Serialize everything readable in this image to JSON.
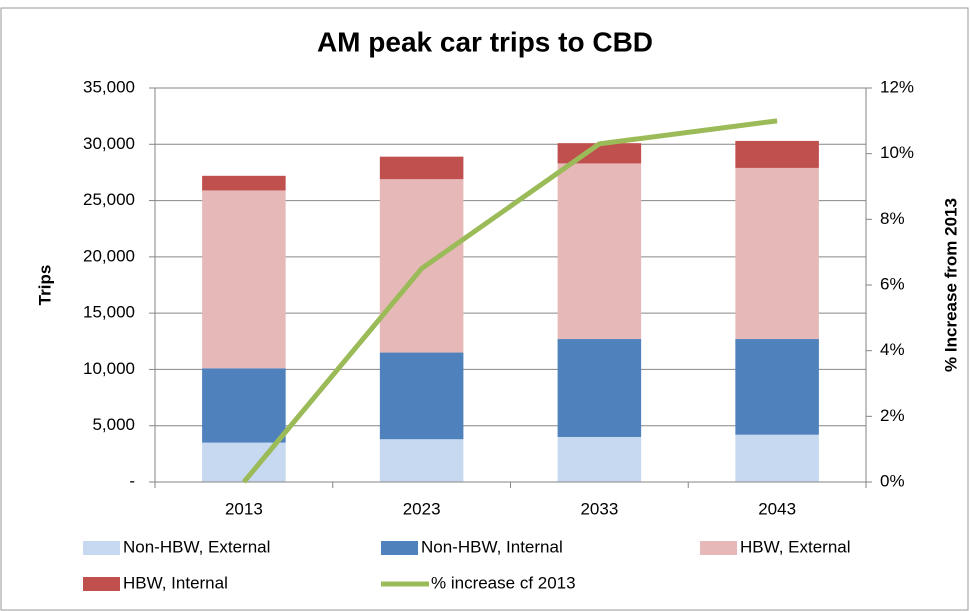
{
  "chart_data": {
    "type": "bar",
    "stacked": true,
    "title": "AM peak car trips to CBD",
    "y_label": "Trips",
    "y2_label": "% Increase from 2013",
    "categories": [
      "2013",
      "2023",
      "2033",
      "2043"
    ],
    "series": [
      {
        "name": "Non-HBW, External",
        "color": "#c6d9f1",
        "values": [
          3500,
          3800,
          4000,
          4200
        ]
      },
      {
        "name": "Non-HBW, Internal",
        "color": "#4f81bd",
        "values": [
          6600,
          7700,
          8700,
          8500
        ]
      },
      {
        "name": "HBW, External",
        "color": "#e6b9b8",
        "values": [
          15800,
          15400,
          15600,
          15200
        ]
      },
      {
        "name": "HBW, Internal",
        "color": "#c0504d",
        "values": [
          1300,
          2000,
          1800,
          2400
        ]
      },
      {
        "name": "% increase cf 2013",
        "type": "line",
        "axis": "y2",
        "color": "#9bbb59",
        "values": [
          0,
          6.5,
          10.3,
          11.0
        ]
      }
    ],
    "ylim": [
      0,
      35000
    ],
    "yticks": [
      {
        "value": 0,
        "label": "-"
      },
      {
        "value": 5000,
        "label": "5,000"
      },
      {
        "value": 10000,
        "label": "10,000"
      },
      {
        "value": 15000,
        "label": "15,000"
      },
      {
        "value": 20000,
        "label": "20,000"
      },
      {
        "value": 25000,
        "label": "25,000"
      },
      {
        "value": 30000,
        "label": "30,000"
      },
      {
        "value": 35000,
        "label": "35,000"
      }
    ],
    "y2lim": [
      0,
      12
    ],
    "y2ticks": [
      {
        "value": 0,
        "label": "0%"
      },
      {
        "value": 2,
        "label": "2%"
      },
      {
        "value": 4,
        "label": "4%"
      },
      {
        "value": 6,
        "label": "6%"
      },
      {
        "value": 8,
        "label": "8%"
      },
      {
        "value": 10,
        "label": "10%"
      },
      {
        "value": 12,
        "label": "12%"
      }
    ],
    "grid": true,
    "legend": "bottom"
  }
}
